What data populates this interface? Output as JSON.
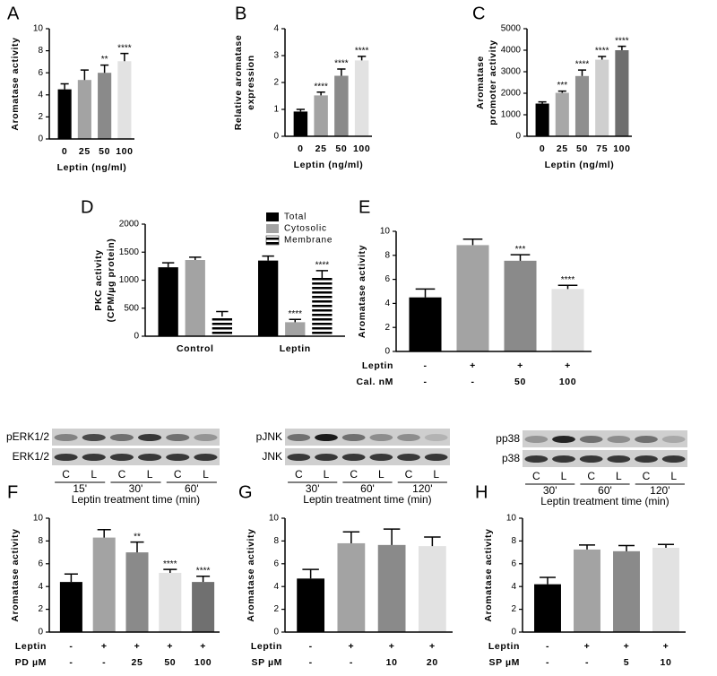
{
  "chart_data": [
    {
      "type": "bar",
      "panel": "A",
      "ylabel": "Aromatase activity",
      "xlabel": "Leptin (ng/ml)",
      "categories": [
        "0",
        "25",
        "50",
        "100"
      ],
      "values": [
        4.5,
        5.35,
        6.0,
        7.05
      ],
      "errors": [
        0.5,
        0.9,
        0.7,
        0.7
      ],
      "annotations": [
        null,
        null,
        "**",
        "****"
      ],
      "colors": [
        "#000000",
        "#a3a3a3",
        "#8a8a8a",
        "#e2e2e2"
      ],
      "ylim": [
        0,
        10
      ],
      "yticks": [
        0,
        2,
        4,
        6,
        8,
        10
      ]
    },
    {
      "type": "bar",
      "panel": "B",
      "ylabel": [
        "Relative aromatase",
        "expression"
      ],
      "xlabel": "Leptin (ng/ml)",
      "categories": [
        "0",
        "25",
        "50",
        "100"
      ],
      "values": [
        0.92,
        1.52,
        2.25,
        2.82
      ],
      "errors": [
        0.08,
        0.12,
        0.25,
        0.15
      ],
      "annotations": [
        null,
        "****",
        "****",
        "****"
      ],
      "colors": [
        "#000000",
        "#a3a3a3",
        "#8a8a8a",
        "#e2e2e2"
      ],
      "ylim": [
        0,
        4
      ],
      "yticks": [
        0,
        1,
        2,
        3,
        4
      ]
    },
    {
      "type": "bar",
      "panel": "C",
      "ylabel": [
        "Aromatase",
        "promoter activity"
      ],
      "xlabel": "Leptin (ng/ml)",
      "categories": [
        "0",
        "25",
        "50",
        "75",
        "100"
      ],
      "values": [
        1520,
        2020,
        2800,
        3560,
        4000
      ],
      "errors": [
        80,
        80,
        280,
        150,
        180
      ],
      "annotations": [
        null,
        "***",
        "****",
        "****",
        "****"
      ],
      "colors": [
        "#000000",
        "#a8a8a8",
        "#8f8f8f",
        "#cfcfcf",
        "#6e6e6e"
      ],
      "ylim": [
        0,
        5000
      ],
      "yticks": [
        0,
        1000,
        2000,
        3000,
        4000,
        5000
      ]
    },
    {
      "type": "grouped_bar",
      "panel": "D",
      "ylabel": [
        "PKC activity",
        "(CPM/µg protein)"
      ],
      "categories": [
        "Control",
        "Leptin"
      ],
      "legend": "top-right",
      "series": [
        {
          "name": "Total",
          "color": "#000000",
          "values": [
            1230,
            1350
          ],
          "errors": [
            80,
            80
          ],
          "annotations": [
            null,
            null
          ]
        },
        {
          "name": "Cytosolic",
          "color": "#a3a3a3",
          "values": [
            1360,
            250
          ],
          "errors": [
            50,
            50
          ],
          "annotations": [
            null,
            "****"
          ]
        },
        {
          "name": "Membrane",
          "color": "#000000",
          "hatch": true,
          "values": [
            350,
            1040
          ],
          "errors": [
            90,
            130
          ],
          "annotations": [
            null,
            "****"
          ]
        }
      ],
      "ylim": [
        0,
        2000
      ],
      "yticks": [
        0,
        500,
        1000,
        1500,
        2000
      ]
    },
    {
      "type": "bar",
      "panel": "E",
      "ylabel": "Aromatase activity",
      "treatments": [
        {
          "name": "Leptin",
          "labels": [
            "-",
            "+",
            "+",
            "+"
          ]
        },
        {
          "name": "Cal. nM",
          "labels": [
            "-",
            "-",
            "50",
            "100"
          ]
        }
      ],
      "values": [
        4.5,
        8.85,
        7.55,
        5.2
      ],
      "errors": [
        0.7,
        0.5,
        0.5,
        0.3
      ],
      "annotations": [
        null,
        null,
        "***",
        "****"
      ],
      "colors": [
        "#000000",
        "#a3a3a3",
        "#8a8a8a",
        "#e2e2e2"
      ],
      "ylim": [
        0,
        10
      ],
      "yticks": [
        0,
        2,
        4,
        6,
        8,
        10
      ]
    },
    {
      "type": "bar",
      "panel": "F",
      "ylabel": "Aromatase activity",
      "treatments": [
        {
          "name": "Leptin",
          "labels": [
            "-",
            "+",
            "+",
            "+",
            "+"
          ]
        },
        {
          "name": "PD µM",
          "labels": [
            "-",
            "-",
            "25",
            "50",
            "100"
          ]
        }
      ],
      "values": [
        4.4,
        8.3,
        7.0,
        5.2,
        4.4
      ],
      "errors": [
        0.7,
        0.7,
        0.9,
        0.3,
        0.5
      ],
      "annotations": [
        null,
        null,
        "**",
        "****",
        "****"
      ],
      "colors": [
        "#000000",
        "#a3a3a3",
        "#8a8a8a",
        "#e2e2e2",
        "#707070"
      ],
      "ylim": [
        0,
        10
      ],
      "yticks": [
        0,
        2,
        4,
        6,
        8,
        10
      ]
    },
    {
      "type": "bar",
      "panel": "G",
      "ylabel": "Aromatase activity",
      "treatments": [
        {
          "name": "Leptin",
          "labels": [
            "-",
            "+",
            "+",
            "+"
          ]
        },
        {
          "name": "SP µM",
          "labels": [
            "-",
            "-",
            "10",
            "20"
          ]
        }
      ],
      "values": [
        4.7,
        7.8,
        7.65,
        7.55
      ],
      "errors": [
        0.8,
        1.0,
        1.4,
        0.8
      ],
      "annotations": [
        null,
        null,
        null,
        null
      ],
      "colors": [
        "#000000",
        "#a3a3a3",
        "#8a8a8a",
        "#e2e2e2"
      ],
      "ylim": [
        0,
        10
      ],
      "yticks": [
        0,
        2,
        4,
        6,
        8,
        10
      ]
    },
    {
      "type": "bar",
      "panel": "H",
      "ylabel": "Aromatase activity",
      "treatments": [
        {
          "name": "Leptin",
          "labels": [
            "-",
            "+",
            "+",
            "+"
          ]
        },
        {
          "name": "SP µM",
          "labels": [
            "-",
            "-",
            "5",
            "10"
          ]
        }
      ],
      "values": [
        4.2,
        7.25,
        7.1,
        7.4
      ],
      "errors": [
        0.6,
        0.4,
        0.5,
        0.3
      ],
      "annotations": [
        null,
        null,
        null,
        null
      ],
      "colors": [
        "#000000",
        "#a3a3a3",
        "#8a8a8a",
        "#e2e2e2"
      ],
      "ylim": [
        0,
        10
      ],
      "yticks": [
        0,
        2,
        4,
        6,
        8,
        10
      ]
    }
  ],
  "blots": [
    {
      "rows": [
        "pERK1/2",
        "ERK1/2"
      ],
      "lanes": [
        "C",
        "L",
        "C",
        "L",
        "C",
        "L"
      ],
      "times": [
        "15'",
        "30'",
        "60'"
      ],
      "caption": "Leptin treatment time (min)"
    },
    {
      "rows": [
        "pJNK",
        "JNK"
      ],
      "lanes": [
        "C",
        "L",
        "C",
        "L",
        "C",
        "L"
      ],
      "times": [
        "30'",
        "60'",
        "120'"
      ],
      "caption": "Leptin treatment time (min)"
    },
    {
      "rows": [
        "pp38",
        "p38"
      ],
      "lanes": [
        "C",
        "L",
        "C",
        "L",
        "C",
        "L"
      ],
      "times": [
        "30'",
        "60'",
        "120'"
      ],
      "caption": "Leptin treatment time (min)"
    }
  ]
}
